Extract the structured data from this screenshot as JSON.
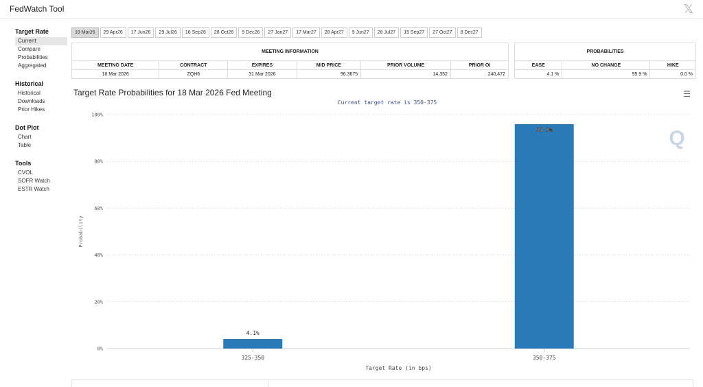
{
  "app": {
    "title": "FedWatch Tool"
  },
  "sidebar": {
    "sections": [
      {
        "heading": "Target Rate",
        "items": [
          "Current",
          "Compare",
          "Probabilities",
          "Aggregated"
        ]
      },
      {
        "heading": "Historical",
        "items": [
          "Historical",
          "Downloads",
          "Prior Hikes"
        ]
      },
      {
        "heading": "Dot Plot",
        "items": [
          "Chart",
          "Table"
        ]
      },
      {
        "heading": "Tools",
        "items": [
          "CVOL",
          "SOFR Watch",
          "ESTR Watch"
        ]
      }
    ],
    "active_item": "Current"
  },
  "date_tabs": {
    "labels": [
      "18 Mar26",
      "29 Apr26",
      "17 Jun26",
      "29 Jul26",
      "16 Sep26",
      "28 Oct26",
      "9 Dec26",
      "27 Jan27",
      "17 Mar27",
      "28 Apr27",
      "9 Jun27",
      "28 Jul27",
      "15 Sep27",
      "27 Oct27",
      "8 Dec27"
    ],
    "active": 0
  },
  "meeting_info": {
    "group_header": "MEETING INFORMATION",
    "headers": [
      "MEETING DATE",
      "CONTRACT",
      "EXPIRES",
      "MID PRICE",
      "PRIOR VOLUME",
      "PRIOR OI"
    ],
    "row": [
      "18 Mar 2026",
      "ZQH6",
      "31 Mar 2026",
      "96.3675",
      "14,352",
      "240,472"
    ]
  },
  "probabilities": {
    "group_header": "PROBABILITIES",
    "headers": [
      "EASE",
      "NO CHANGE",
      "HIKE"
    ],
    "row": [
      "4.1 %",
      "95.9 %",
      "0.0 %"
    ]
  },
  "chart_header": {
    "title": "Target Rate Probabilities for 18 Mar 2026 Fed Meeting",
    "menu_icon": "hamburger-menu-icon"
  },
  "chart_data": {
    "type": "bar",
    "title": "Target Rate Probabilities for 18 Mar 2026 Fed Meeting",
    "subtitle": "Current target rate is 350-375",
    "categories": [
      "325-350",
      "350-375"
    ],
    "values": [
      4.1,
      95.9
    ],
    "data_labels": [
      "4.1%",
      "95.9%"
    ],
    "xlabel": "Target Rate (in bps)",
    "ylabel": "Probability",
    "ylim": [
      0,
      100
    ],
    "yticks": [
      "0%",
      "20%",
      "40%",
      "60%",
      "80%",
      "100%"
    ],
    "grid": true,
    "bar_color": "#2b7bb9",
    "watermark": "Q"
  }
}
